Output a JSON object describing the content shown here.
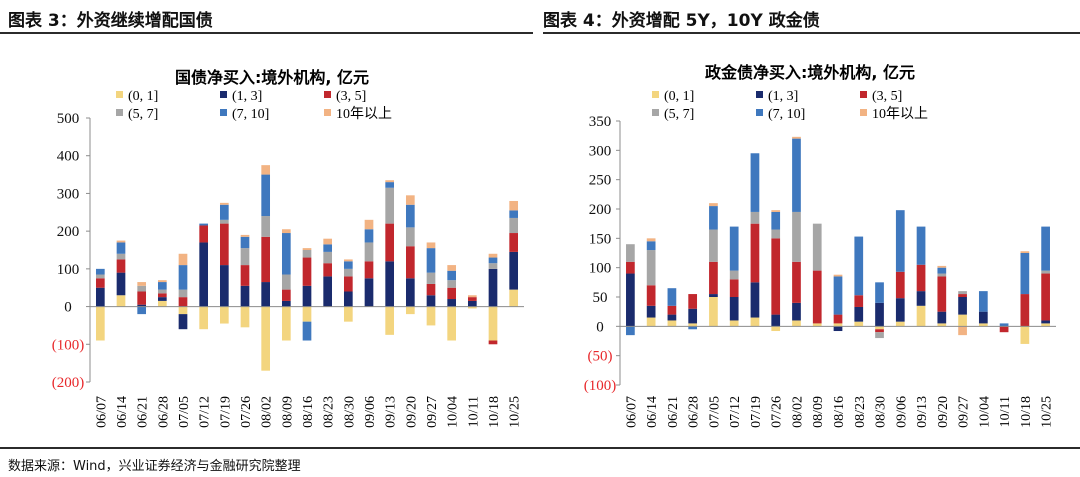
{
  "header": {
    "left_title": "图表 3：外资继续增配国债",
    "right_title": "图表 4：外资增配 5Y，10Y 政金债"
  },
  "footer": {
    "source": "数据来源：Wind，兴业证券经济与金融研究院整理"
  },
  "colors": {
    "s01": "#F3D57F",
    "s13": "#1A2B6D",
    "s35": "#C1272D",
    "s57": "#A6A6A6",
    "s710": "#3F78BE",
    "s10p": "#F2B383",
    "negative_label": "#E8282B"
  },
  "chart_data": [
    {
      "type": "bar",
      "stacked": true,
      "title": "国债净买入:境外机构, 亿元",
      "ylim": [
        -200,
        500
      ],
      "yticks": [
        500,
        400,
        300,
        200,
        100,
        0,
        -100,
        -200
      ],
      "ytick_labels": [
        "500",
        "400",
        "300",
        "200",
        "100",
        "0",
        "(100)",
        "(200)"
      ],
      "categories": [
        "06/07",
        "06/14",
        "06/21",
        "06/28",
        "07/05",
        "07/12",
        "07/19",
        "07/26",
        "08/02",
        "08/09",
        "08/16",
        "08/23",
        "08/30",
        "09/06",
        "09/13",
        "09/20",
        "09/27",
        "10/04",
        "10/11",
        "10/18",
        "10/25"
      ],
      "series": [
        {
          "name": "(0, 1]",
          "key": "s01",
          "values": [
            -90,
            30,
            0,
            15,
            -20,
            -60,
            -45,
            -55,
            -170,
            -90,
            -40,
            0,
            -40,
            0,
            -75,
            -20,
            -50,
            -90,
            -5,
            -90,
            45
          ]
        },
        {
          "name": "(1, 3]",
          "key": "s13",
          "values": [
            50,
            60,
            5,
            10,
            -40,
            170,
            110,
            55,
            65,
            15,
            55,
            80,
            40,
            75,
            120,
            75,
            30,
            20,
            15,
            100,
            100
          ]
        },
        {
          "name": "(3, 5]",
          "key": "s35",
          "values": [
            25,
            35,
            35,
            10,
            25,
            45,
            110,
            55,
            120,
            30,
            75,
            35,
            40,
            45,
            100,
            85,
            30,
            30,
            10,
            -10,
            50
          ]
        },
        {
          "name": "(5, 7]",
          "key": "s57",
          "values": [
            10,
            15,
            15,
            10,
            20,
            0,
            10,
            45,
            55,
            40,
            20,
            30,
            20,
            50,
            95,
            50,
            30,
            20,
            0,
            15,
            40
          ]
        },
        {
          "name": "(7, 10]",
          "key": "s710",
          "values": [
            15,
            30,
            -20,
            20,
            65,
            5,
            40,
            30,
            110,
            110,
            -50,
            20,
            20,
            35,
            15,
            60,
            65,
            25,
            0,
            15,
            20
          ]
        },
        {
          "name": "10年以上",
          "key": "s10p",
          "values": [
            0,
            5,
            10,
            5,
            30,
            0,
            5,
            5,
            25,
            10,
            5,
            15,
            5,
            25,
            5,
            25,
            15,
            15,
            5,
            10,
            25
          ]
        }
      ]
    },
    {
      "type": "bar",
      "stacked": true,
      "title": "政金债净买入:境外机构, 亿元",
      "ylim": [
        -100,
        350
      ],
      "yticks": [
        350,
        300,
        250,
        200,
        150,
        100,
        50,
        0,
        -50,
        -100
      ],
      "ytick_labels": [
        "350",
        "300",
        "250",
        "200",
        "150",
        "100",
        "50",
        "0",
        "(50)",
        "(100)"
      ],
      "categories": [
        "06/07",
        "06/14",
        "06/21",
        "06/28",
        "07/05",
        "07/12",
        "07/19",
        "07/26",
        "08/02",
        "08/09",
        "08/16",
        "08/23",
        "08/30",
        "09/06",
        "09/13",
        "09/20",
        "09/27",
        "10/04",
        "10/11",
        "10/18",
        "10/25"
      ],
      "series": [
        {
          "name": "(0, 1]",
          "key": "s01",
          "values": [
            0,
            15,
            10,
            5,
            50,
            10,
            15,
            -8,
            10,
            5,
            5,
            8,
            -5,
            8,
            35,
            5,
            20,
            5,
            0,
            -30,
            5
          ]
        },
        {
          "name": "(1, 3]",
          "key": "s13",
          "values": [
            90,
            20,
            10,
            25,
            5,
            40,
            60,
            20,
            30,
            0,
            -8,
            25,
            40,
            40,
            25,
            20,
            30,
            20,
            0,
            0,
            5
          ]
        },
        {
          "name": "(3, 5]",
          "key": "s35",
          "values": [
            20,
            35,
            15,
            25,
            55,
            30,
            100,
            130,
            70,
            90,
            15,
            20,
            -5,
            45,
            45,
            60,
            5,
            0,
            -10,
            55,
            80
          ]
        },
        {
          "name": "(5, 7]",
          "key": "s57",
          "values": [
            30,
            60,
            0,
            0,
            55,
            15,
            20,
            15,
            85,
            80,
            0,
            0,
            -10,
            0,
            0,
            5,
            5,
            0,
            0,
            0,
            5
          ]
        },
        {
          "name": "(7, 10]",
          "key": "s710",
          "values": [
            -15,
            15,
            30,
            -5,
            40,
            75,
            100,
            30,
            125,
            0,
            65,
            100,
            35,
            105,
            65,
            10,
            0,
            35,
            5,
            70,
            75
          ]
        },
        {
          "name": "10年以上",
          "key": "s10p",
          "values": [
            0,
            5,
            0,
            0,
            5,
            0,
            0,
            3,
            3,
            0,
            3,
            0,
            0,
            0,
            0,
            3,
            -15,
            0,
            0,
            3,
            0
          ]
        }
      ]
    }
  ]
}
